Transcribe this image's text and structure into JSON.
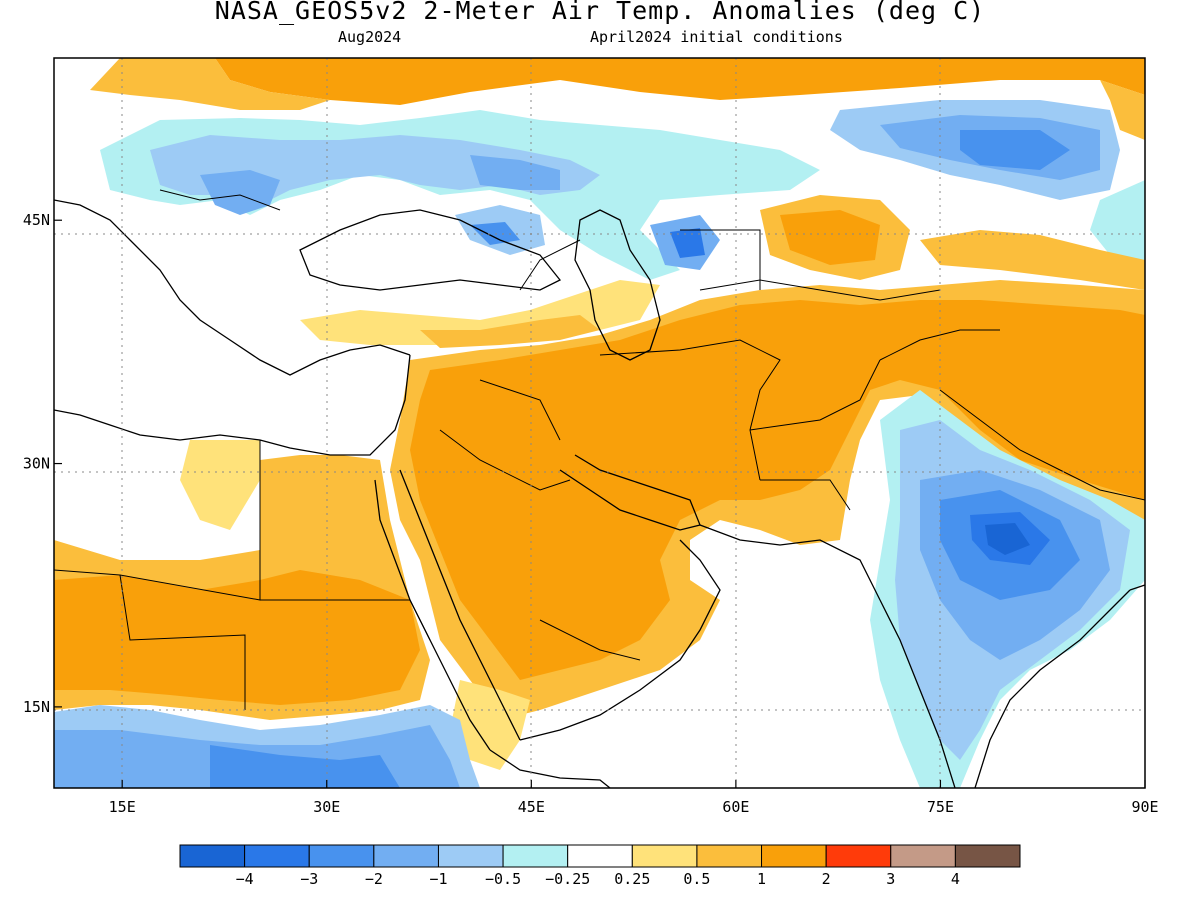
{
  "header": {
    "title": "NASA_GEOS5v2 2-Meter Air Temp. Anomalies (deg C)",
    "valid_month": "Aug2024",
    "init_conditions": "April2024 initial conditions"
  },
  "map": {
    "lon_range": [
      10,
      90
    ],
    "lat_range": [
      10,
      55
    ],
    "lon_ticks": [
      {
        "value": 15,
        "label": "15E"
      },
      {
        "value": 30,
        "label": "30E"
      },
      {
        "value": 45,
        "label": "45E"
      },
      {
        "value": 60,
        "label": "60E"
      },
      {
        "value": 75,
        "label": "75E"
      },
      {
        "value": 90,
        "label": "90E"
      }
    ],
    "lat_ticks": [
      {
        "value": 15,
        "label": "15N"
      },
      {
        "value": 30,
        "label": "30N"
      },
      {
        "value": 45,
        "label": "45N"
      }
    ]
  },
  "legend": {
    "colors": [
      "#1965d4",
      "#2a78e8",
      "#4892ee",
      "#72aef2",
      "#9dcbf5",
      "#b3f0f2",
      "#ffffff",
      "#ffe27a",
      "#fbbe3c",
      "#f9a00a",
      "#ff3b0a",
      "#c49a87",
      "#775545"
    ],
    "labels": [
      "−4",
      "−3",
      "−2",
      "−1",
      "−0.5",
      "−0.25",
      "0.25",
      "0.5",
      "1",
      "2",
      "3",
      "4"
    ]
  }
}
